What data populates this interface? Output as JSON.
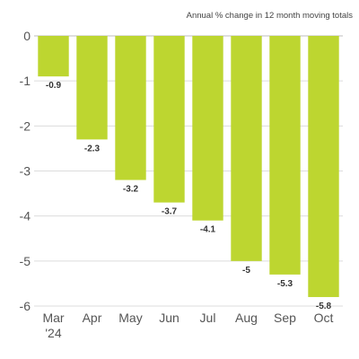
{
  "chart_data": {
    "type": "bar",
    "title": "",
    "subtitle": "Annual % change in 12 month moving totals",
    "categories": [
      "Mar",
      "Apr",
      "May",
      "Jun",
      "Jul",
      "Aug",
      "Sep",
      "Oct"
    ],
    "category_year_label": "'24",
    "values": [
      -0.9,
      -2.3,
      -3.2,
      -3.7,
      -4.1,
      -5,
      -5.3,
      -5.8
    ],
    "data_labels": [
      "-0.9",
      "-2.3",
      "-3.2",
      "-3.7",
      "-4.1",
      "-5",
      "-5.3",
      "-5.8"
    ],
    "y_ticks": [
      0,
      -1,
      -2,
      -3,
      -4,
      -5,
      -6
    ],
    "y_tick_labels": [
      "0",
      "-1",
      "-2",
      "-3",
      "-4",
      "-5",
      "-6"
    ],
    "ylim": [
      -6,
      0
    ],
    "xlabel": "",
    "ylabel": "",
    "grid": true,
    "bar_color": "#bdd630",
    "grid_color": "#dcdcdc"
  }
}
